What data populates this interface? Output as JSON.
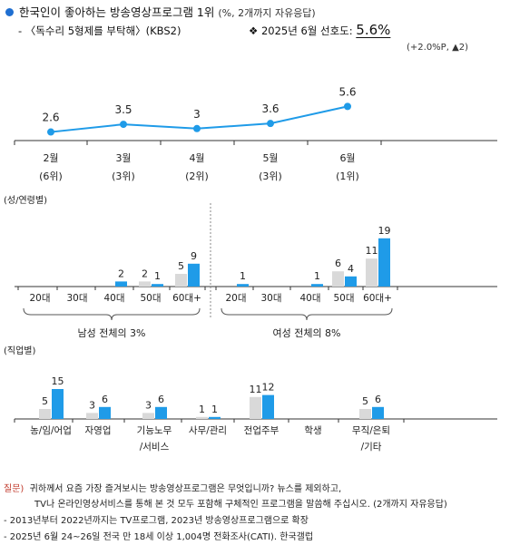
{
  "header": {
    "title": "한국인이 좋아하는 방송영상프로그램 1위",
    "title_sub": "(%, 2개까지 자유응답)",
    "program": "- 〈독수리 5형제를 부탁해〉(KBS2)",
    "pref_label": "❖ 2025년 6월 선호도:",
    "pref_value": "5.6%",
    "pref_change": "(+2.0%P, ▲2)"
  },
  "colors": {
    "accent": "#1f9be8",
    "gray_bar": "#d9d9d9",
    "line_marker": "#1f9be8"
  },
  "chart_data": [
    {
      "type": "line",
      "x": [
        "2월",
        "3월",
        "4월",
        "5월",
        "6월"
      ],
      "ranks": [
        "(6위)",
        "(3위)",
        "(2위)",
        "(3위)",
        "(1위)"
      ],
      "values": [
        2.6,
        3.5,
        3.0,
        3.6,
        5.6
      ],
      "ylim": [
        0,
        8
      ]
    },
    {
      "type": "bar",
      "label": "(성/연령별)",
      "groups": [
        {
          "name": "남성 전체의 3%",
          "categories": [
            "20대",
            "30대",
            "40대",
            "50대",
            "60대+"
          ],
          "prev": [
            null,
            null,
            null,
            2,
            5
          ],
          "curr": [
            null,
            null,
            2,
            1,
            9
          ]
        },
        {
          "name": "여성 전체의 8%",
          "categories": [
            "20대",
            "30대",
            "40대",
            "50대",
            "60대+"
          ],
          "prev": [
            null,
            null,
            null,
            6,
            11
          ],
          "curr": [
            1,
            null,
            1,
            4,
            19
          ]
        }
      ],
      "ylim": [
        0,
        20
      ]
    },
    {
      "type": "bar",
      "label": "(직업별)",
      "categories": [
        "농/임/어업",
        "자영업",
        "기능노무\n/서비스",
        "사무/관리",
        "전업주부",
        "학생",
        "무직/은퇴\n/기타"
      ],
      "prev": [
        5,
        3,
        3,
        1,
        11,
        null,
        5
      ],
      "curr": [
        15,
        6,
        6,
        1,
        12,
        null,
        6
      ],
      "ylim": [
        0,
        20
      ]
    }
  ],
  "footnotes": {
    "question_label": "질문)",
    "question_line1": "귀하께서 요즘 가장 즐겨보시는 방송영상프로그램은 무엇입니까? 뉴스를 제외하고,",
    "question_line2": "TV나 온라인영상서비스를 통해 본 것 모두 포함해 구체적인 프로그램을 말씀해 주십시오. (2개까지 자유응답)",
    "note1": "- 2013년부터 2022년까지는 TV프로그램, 2023년 방송영상프로그램으로 확장",
    "note2": "- 2025년 6월 24~26일 전국 만 18세 이상 1,004명 전화조사(CATI). 한국갤럽"
  }
}
